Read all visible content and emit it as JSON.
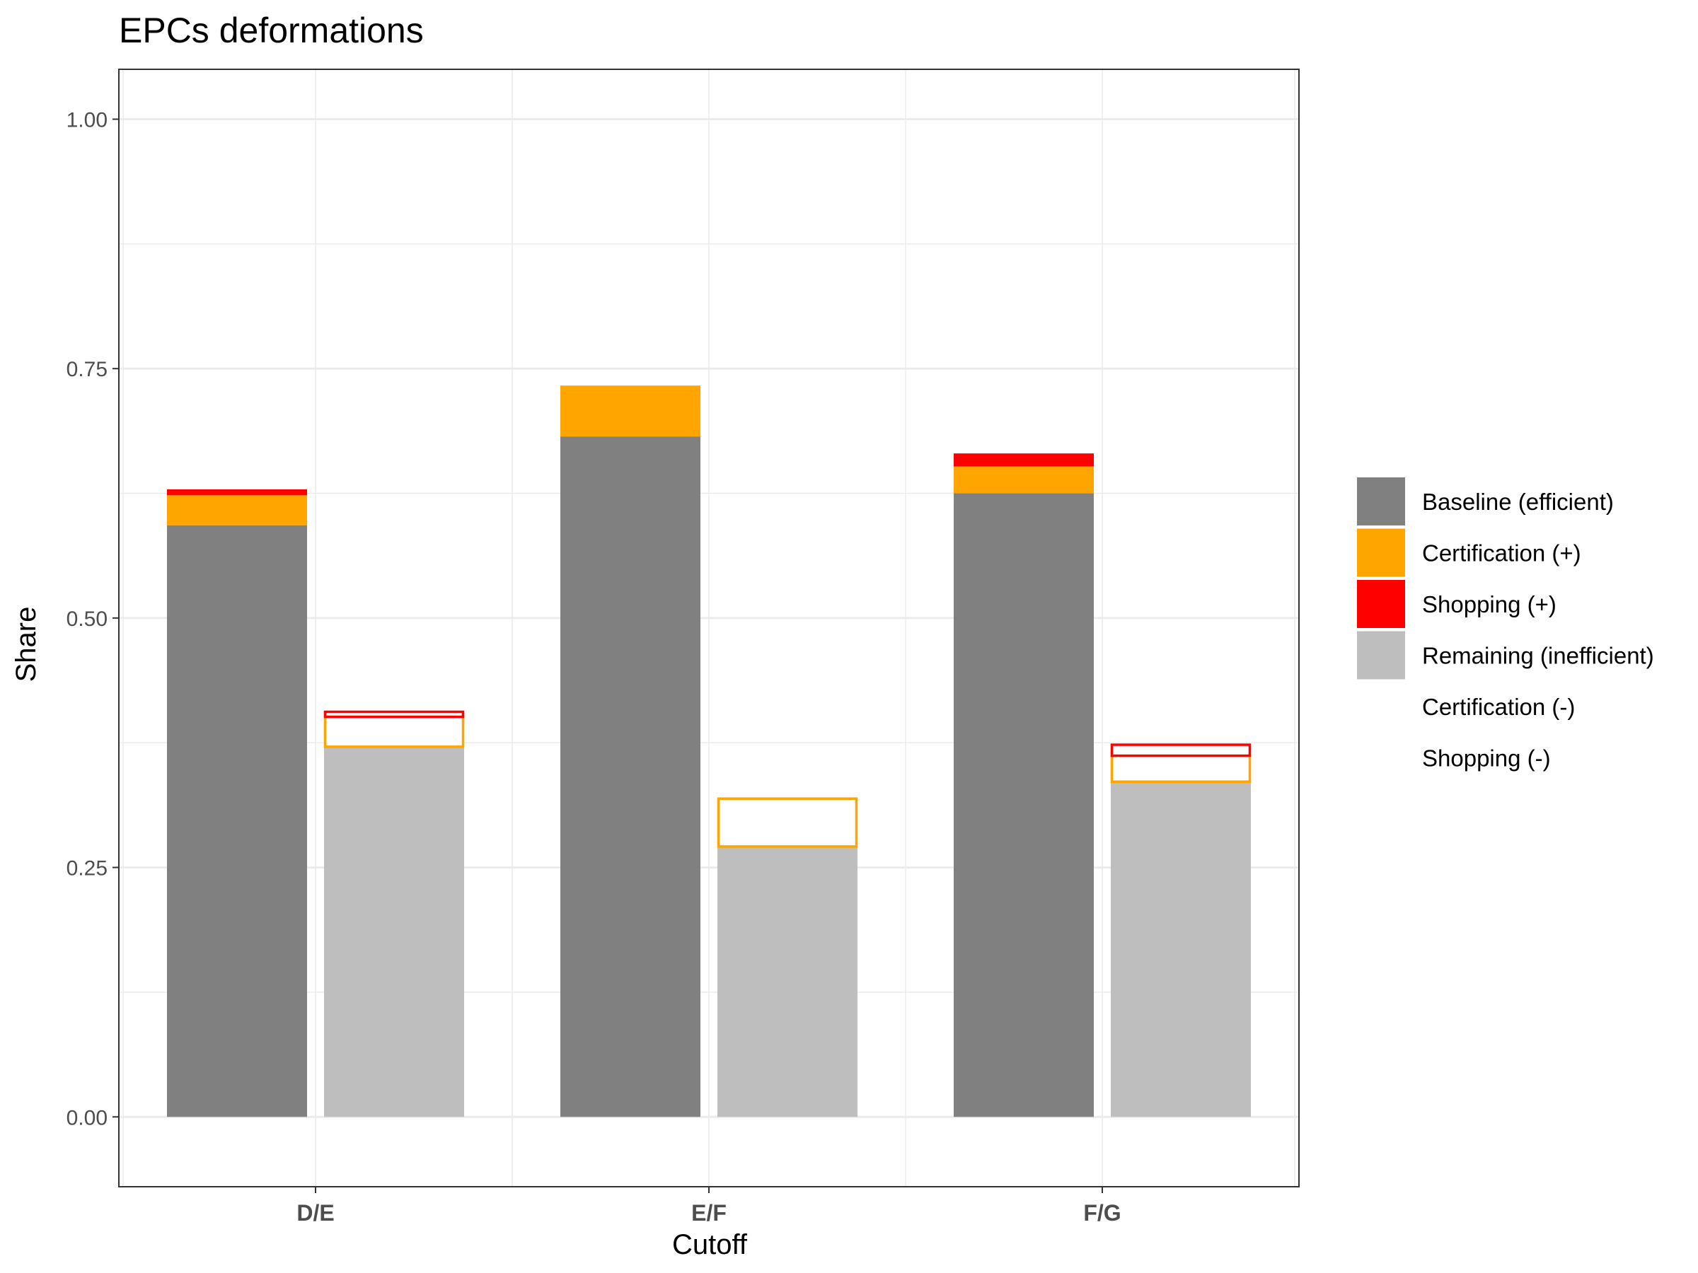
{
  "chart_data": {
    "type": "bar",
    "title": "EPCs deformations",
    "xlabel": "Cutoff",
    "ylabel": "Share",
    "ylim": [
      -0.07,
      1.05
    ],
    "y_ticks": [
      0.0,
      0.25,
      0.5,
      0.75,
      1.0
    ],
    "y_tick_labels": [
      "0.00",
      "0.25",
      "0.50",
      "0.75",
      "1.00"
    ],
    "categories": [
      "D/E",
      "E/F",
      "F/G"
    ],
    "grid": true,
    "legend_position": "right",
    "series": [
      {
        "name": "Baseline (efficient)",
        "bar": "efficient",
        "fill": "#808080",
        "outline": null,
        "values": [
          0.593,
          0.682,
          0.625
        ]
      },
      {
        "name": "Certification (+)",
        "bar": "efficient",
        "fill": "#FFA500",
        "outline": null,
        "values": [
          0.03,
          0.051,
          0.027
        ]
      },
      {
        "name": "Shopping (+)",
        "bar": "efficient",
        "fill": "#FF0000",
        "outline": null,
        "values": [
          0.006,
          0.0,
          0.013
        ]
      },
      {
        "name": "Remaining (inefficient)",
        "bar": "inefficient",
        "fill": "#BEBEBE",
        "outline": null,
        "values": [
          0.371,
          0.271,
          0.336
        ]
      },
      {
        "name": "Certification (-)",
        "bar": "inefficient",
        "fill": "#FFFFFF",
        "outline": "#FFA500",
        "values": [
          0.03,
          0.048,
          0.026
        ]
      },
      {
        "name": "Shopping (-)",
        "bar": "inefficient",
        "fill": "#FFFFFF",
        "outline": "#FF0000",
        "values": [
          0.005,
          0.0,
          0.011
        ]
      }
    ]
  }
}
